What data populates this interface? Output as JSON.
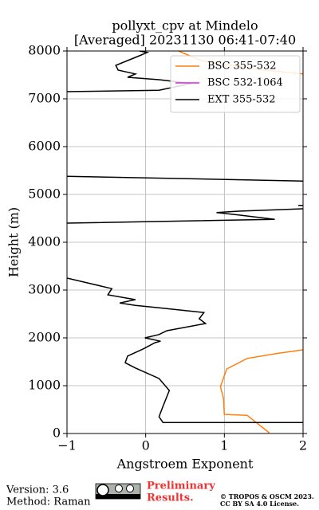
{
  "chart_data": {
    "type": "line",
    "title": "pollyxt_cpv at Mindelo",
    "subtitle": "[Averaged] 20231130 06:41-07:40",
    "x_label": "Angstroem Exponent",
    "y_label": "Height (m)",
    "xlim": [
      -1,
      2
    ],
    "ylim": [
      0,
      8000
    ],
    "xticks": [
      {
        "value": -1,
        "label": "−1"
      },
      0,
      1,
      2
    ],
    "yticks": [
      0,
      1000,
      2000,
      3000,
      4000,
      5000,
      6000,
      7000,
      8000
    ],
    "grid": true,
    "legend": "upper right",
    "series": [
      {
        "name": "BSC 355-532",
        "color": "#ff7f0e",
        "x": [
          1.57,
          1.29,
          1.0,
          0.99,
          0.95,
          1.03,
          1.29,
          1.69,
          2.0,
          null,
          0.42,
          0.7,
          1.5,
          2.0
        ],
        "y": [
          15,
          380,
          400,
          730,
          980,
          1350,
          1570,
          1680,
          1750,
          null,
          8000,
          7800,
          7600,
          7520
        ]
      },
      {
        "name": "BSC 532-1064",
        "color": "#e020e0",
        "x": [],
        "y": []
      },
      {
        "name": "EXT 355-532",
        "color": "#000000",
        "x": [
          2.0,
          0.22,
          0.17,
          0.22,
          0.3,
          0.17,
          -0.13,
          -0.26,
          -0.23,
          -0.03,
          0.12,
          0.19,
          -0.01,
          0.17,
          0.27,
          0.76,
          0.68,
          0.74,
          0.17,
          -0.13,
          -0.33,
          -0.13,
          -0.48,
          -0.43,
          -0.74,
          -1.0,
          null,
          -1.0,
          1.64,
          1.18,
          0.9,
          1.18,
          2.0,
          null,
          1.94,
          2.0,
          null,
          -1.0,
          2.0,
          null,
          -1.0,
          0.17,
          0.58,
          0.17,
          -0.23,
          -0.13,
          -0.35,
          -0.38,
          -0.23,
          -0.08,
          0.02,
          -0.08
        ],
        "y": [
          230,
          230,
          350,
          570,
          900,
          1150,
          1370,
          1480,
          1620,
          1770,
          1900,
          1930,
          2000,
          2070,
          2150,
          2300,
          2400,
          2530,
          2630,
          2680,
          2730,
          2800,
          2900,
          3030,
          3150,
          3250,
          null,
          4400,
          4480,
          4570,
          4620,
          4650,
          4700,
          null,
          4770,
          4770,
          null,
          5380,
          5280,
          null,
          7150,
          7180,
          7320,
          7400,
          7450,
          7520,
          7600,
          7700,
          7800,
          7900,
          7970,
          8000
        ]
      }
    ]
  },
  "footer": {
    "version": "Version: 3.6",
    "method": "Method: Raman",
    "preliminary_1": "Preliminary",
    "preliminary_2": "Results.",
    "copyright_1": "© TROPOS & OSCM 2023.",
    "copyright_2": "CC BY SA 4.0 License."
  }
}
